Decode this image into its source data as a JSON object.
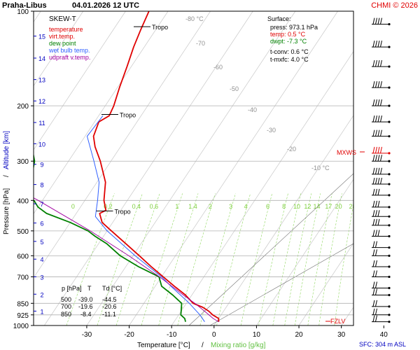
{
  "header": {
    "station": "Praha-Libus",
    "datetime": "04.01.2026 12 UTC",
    "copyright": "CHMI © 2026"
  },
  "legend": {
    "title": "SKEW-T",
    "items": [
      {
        "label": "temperature",
        "color": "#e00000"
      },
      {
        "label": "virt.temp.",
        "color": "#e00000"
      },
      {
        "label": "dew point",
        "color": "#008000"
      },
      {
        "label": "wet bulb temp.",
        "color": "#3060ff"
      },
      {
        "label": "udpraft v.temp.",
        "color": "#a000a0"
      }
    ]
  },
  "surface_box": {
    "title": "Surface:",
    "press": "press: 973.1 hPa",
    "temp": "temp: 0.5 °C",
    "dwpt": "dwpt: -7.3 °C",
    "tconv": "t-conv: 0.6 °C",
    "tmxfc": "t-mxfc: 4.0 °C"
  },
  "table": {
    "headers": [
      "p [hPa]",
      "T",
      "Td [°C]"
    ],
    "rows": [
      [
        "500",
        "-39.0",
        "-44.5"
      ],
      [
        "700",
        "-19.6",
        "-20.6"
      ],
      [
        "850",
        "-8.4",
        "-11.1"
      ]
    ]
  },
  "labels": {
    "tropo": "Tropo",
    "mxws": "MXWS",
    "fzlv": "FZLV",
    "sfc": "SFC: 304 m ASL",
    "xlabel_temp": "Temperature [°C]",
    "xlabel_sep": "/",
    "xlabel_mix": "Mixing ratio [g/kg]",
    "ylabel_p": "Pressure [hPa]",
    "ylabel_sep": "/",
    "ylabel_alt": "Altitude [km]"
  },
  "colors": {
    "temperature": "#e00000",
    "dewpoint": "#008000",
    "wetbulb": "#3060ff",
    "parcel": "#a000a0",
    "mixing": "#90d860",
    "isotherm": "#c8c8c8",
    "isobar": "#b0b0b0",
    "mix_label": "#80d040",
    "alt_label": "#0000c0",
    "red_label": "#e00000"
  },
  "chart_data": {
    "type": "skew-t",
    "title": "",
    "xlabel": "Temperature [°C] / Mixing ratio [g/kg]",
    "ylabel": "Pressure [hPa] / Altitude [km]",
    "xlim": [
      -35,
      45
    ],
    "ylim": [
      1000,
      100
    ],
    "yscale": "log",
    "pressure_ticks": [
      100,
      200,
      300,
      400,
      500,
      600,
      700,
      850,
      925,
      1000
    ],
    "temperature_ticks": [
      -30,
      -20,
      -10,
      0,
      10,
      20,
      30,
      40
    ],
    "altitude_km_ticks": [
      {
        "km": 1,
        "p": 900
      },
      {
        "km": 2,
        "p": 795
      },
      {
        "km": 3,
        "p": 700
      },
      {
        "km": 4,
        "p": 615
      },
      {
        "km": 5,
        "p": 540
      },
      {
        "km": 6,
        "p": 472
      },
      {
        "km": 7,
        "p": 410
      },
      {
        "km": 8,
        "p": 356
      },
      {
        "km": 9,
        "p": 307
      },
      {
        "km": 10,
        "p": 264
      },
      {
        "km": 11,
        "p": 226
      },
      {
        "km": 12,
        "p": 193
      },
      {
        "km": 13,
        "p": 165
      },
      {
        "km": 14,
        "p": 141
      },
      {
        "km": 15,
        "p": 120
      }
    ],
    "isotherm_labels": [
      -80,
      -70,
      -60,
      -50,
      -40,
      -30,
      -20,
      -10
    ],
    "mixing_ratio_lines": [
      0,
      0.2,
      0.4,
      0.6,
      1,
      1.4,
      2,
      3,
      4,
      6,
      8,
      10,
      12,
      14,
      17,
      20,
      25
    ],
    "mixing_ratio_labels": [
      "0",
      "0.2",
      "0.4",
      "0.6",
      "1",
      "1.4",
      "2",
      "3",
      "4",
      "6",
      "8",
      "10",
      "12",
      "14",
      "17",
      "20",
      "25"
    ],
    "series": [
      {
        "name": "temperature",
        "points": [
          [
            973,
            0.5
          ],
          [
            950,
            0.0
          ],
          [
            925,
            -2.0
          ],
          [
            900,
            -3.5
          ],
          [
            875,
            -5.5
          ],
          [
            850,
            -8.4
          ],
          [
            800,
            -11.5
          ],
          [
            750,
            -15.5
          ],
          [
            700,
            -19.6
          ],
          [
            650,
            -24.0
          ],
          [
            600,
            -28.5
          ],
          [
            550,
            -33.5
          ],
          [
            500,
            -39.0
          ],
          [
            470,
            -42.5
          ],
          [
            440,
            -44.5
          ],
          [
            430,
            -43.5
          ],
          [
            400,
            -45.5
          ],
          [
            350,
            -48.0
          ],
          [
            300,
            -52.5
          ],
          [
            270,
            -56.0
          ],
          [
            250,
            -58.0
          ],
          [
            225,
            -59.0
          ],
          [
            215,
            -57.5
          ],
          [
            200,
            -58.0
          ],
          [
            175,
            -59.5
          ],
          [
            150,
            -61.0
          ],
          [
            130,
            -62.5
          ],
          [
            115,
            -63.5
          ],
          [
            100,
            -64.5
          ]
        ]
      },
      {
        "name": "dew point",
        "points": [
          [
            973,
            -7.3
          ],
          [
            950,
            -8.0
          ],
          [
            925,
            -9.5
          ],
          [
            900,
            -10.0
          ],
          [
            850,
            -11.1
          ],
          [
            800,
            -14.5
          ],
          [
            750,
            -18.5
          ],
          [
            700,
            -20.6
          ],
          [
            650,
            -27.0
          ],
          [
            600,
            -33.0
          ],
          [
            550,
            -38.0
          ],
          [
            520,
            -42.0
          ],
          [
            500,
            -44.5
          ],
          [
            470,
            -50.0
          ],
          [
            440,
            -57.0
          ],
          [
            420,
            -60.0
          ],
          [
            400,
            -62.0
          ],
          [
            380,
            -66.0
          ],
          [
            350,
            -66.5
          ],
          [
            320,
            -67.0
          ],
          [
            300,
            -68.0
          ],
          [
            250,
            -73.0
          ],
          [
            210,
            -78.0
          ],
          [
            200,
            -80.0
          ],
          [
            180,
            -83.0
          ],
          [
            150,
            -88.0
          ],
          [
            120,
            -92.0
          ],
          [
            100,
            -95.0
          ]
        ]
      },
      {
        "name": "wet bulb temp.",
        "points": [
          [
            973,
            -2.8
          ],
          [
            925,
            -5.0
          ],
          [
            850,
            -9.3
          ],
          [
            750,
            -16.3
          ],
          [
            700,
            -20.0
          ],
          [
            600,
            -29.5
          ],
          [
            500,
            -40.0
          ],
          [
            450,
            -45.0
          ],
          [
            400,
            -47.0
          ],
          [
            350,
            -49.5
          ],
          [
            300,
            -54.0
          ],
          [
            250,
            -59.5
          ],
          [
            215,
            -59.0
          ]
        ]
      },
      {
        "name": "udpraft v.temp.",
        "points": [
          [
            973,
            0.5
          ],
          [
            950,
            -1.3
          ],
          [
            900,
            -4.5
          ],
          [
            850,
            -8.0
          ],
          [
            800,
            -12.0
          ],
          [
            700,
            -20.5
          ],
          [
            600,
            -31.0
          ],
          [
            500,
            -44.0
          ],
          [
            400,
            -61.0
          ],
          [
            300,
            -84.0
          ],
          [
            200,
            -114.0
          ],
          [
            150,
            -131.0
          ]
        ]
      }
    ],
    "annotations": {
      "tropopause_hPa": [
        432,
        213,
        112
      ],
      "mxws_hPa": 283,
      "fzlv_hPa": 965
    },
    "wind_barbs_hPa": [
      110,
      130,
      150,
      175,
      200,
      225,
      250,
      283,
      300,
      330,
      355,
      385,
      420,
      450,
      480,
      520,
      565,
      600,
      650,
      700,
      760,
      800,
      870,
      925,
      973
    ],
    "surface": {
      "pressure_hPa": 973.1,
      "temperature_C": 0.5,
      "dewpoint_C": -7.3,
      "convective_temperature_C": 0.6,
      "max_forecast_temperature_C": 4.0,
      "altitude_m_asl": 304
    }
  }
}
